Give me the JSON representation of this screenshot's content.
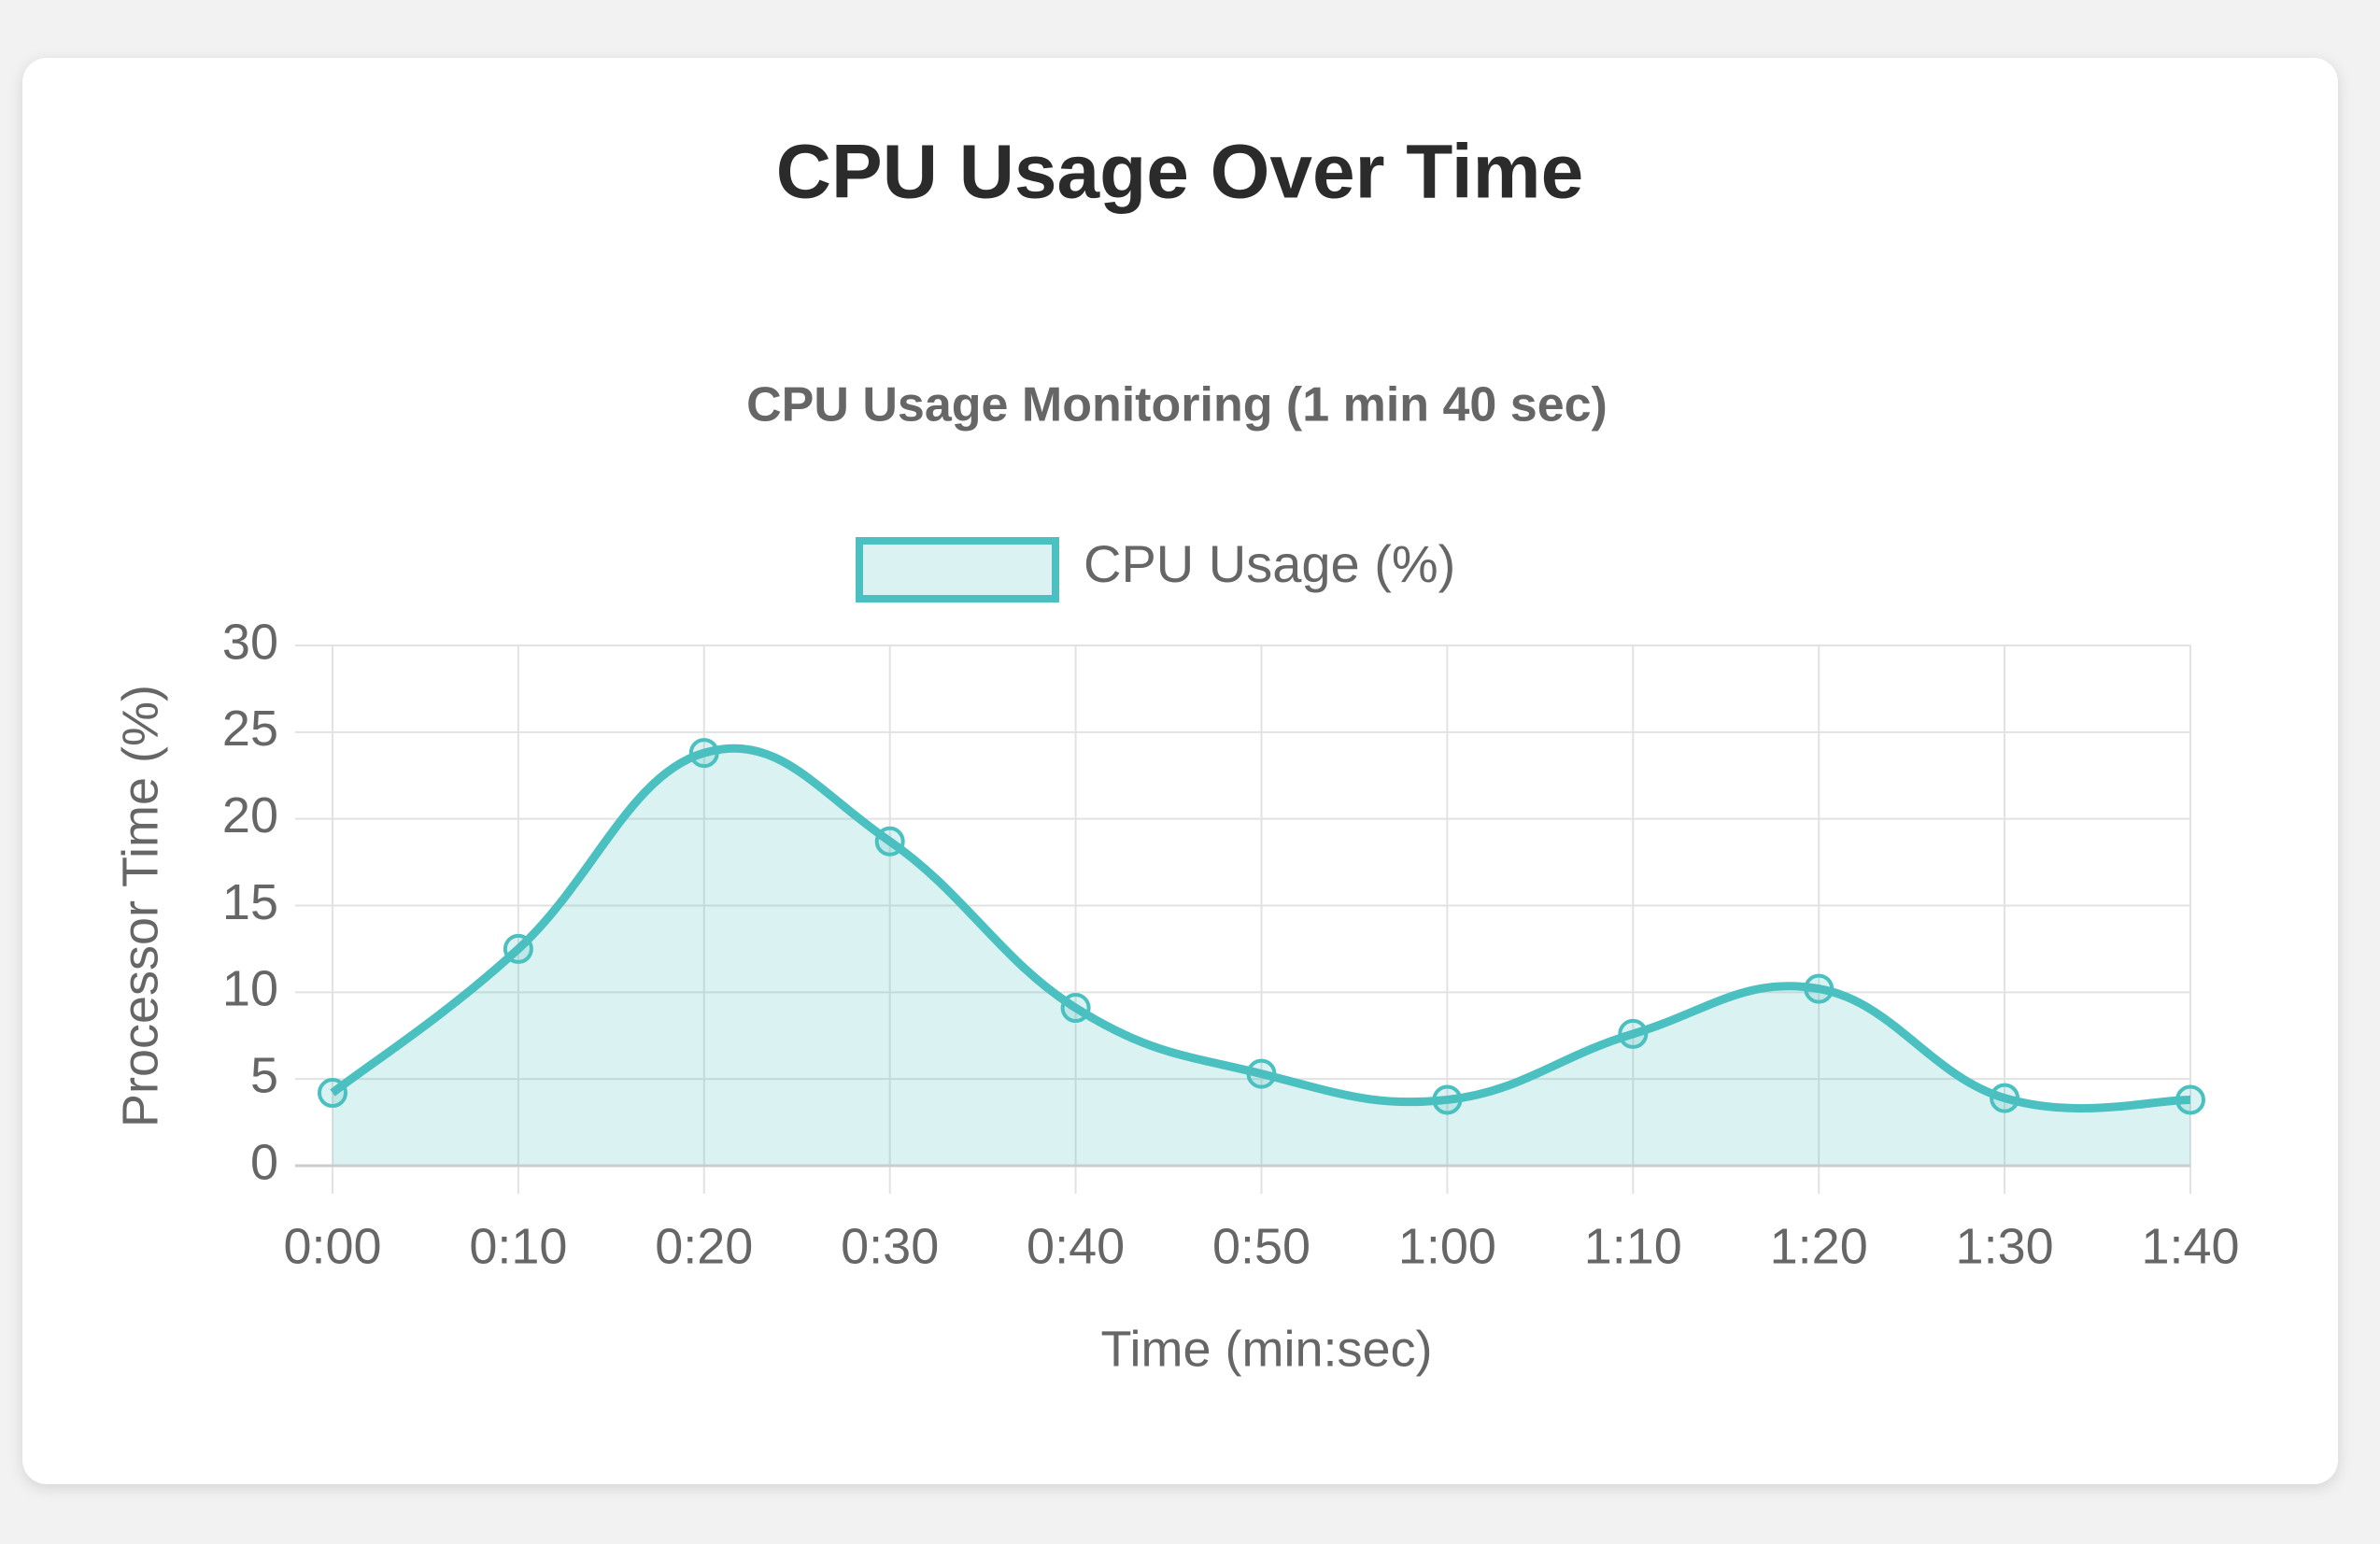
{
  "chart_data": {
    "type": "line",
    "page_title": "CPU Usage Over Time",
    "title": "CPU Usage Monitoring (1 min 40 sec)",
    "x_label": "Time (min:sec)",
    "y_label": "Processor Time (%)",
    "categories": [
      "0:00",
      "0:10",
      "0:20",
      "0:30",
      "0:40",
      "0:50",
      "1:00",
      "1:10",
      "1:20",
      "1:30",
      "1:40"
    ],
    "series": [
      {
        "name": "CPU Usage (%)",
        "color": "#4bc0c0",
        "fill": "rgba(75,192,192,0.2)",
        "values": [
          4.2,
          12.5,
          23.8,
          18.7,
          9.1,
          5.3,
          3.8,
          7.6,
          10.2,
          3.9,
          3.8
        ]
      }
    ],
    "ylim": [
      0,
      30
    ],
    "yticks": [
      0,
      5,
      10,
      15,
      20,
      25,
      30
    ],
    "grid": true,
    "legend": "top"
  }
}
